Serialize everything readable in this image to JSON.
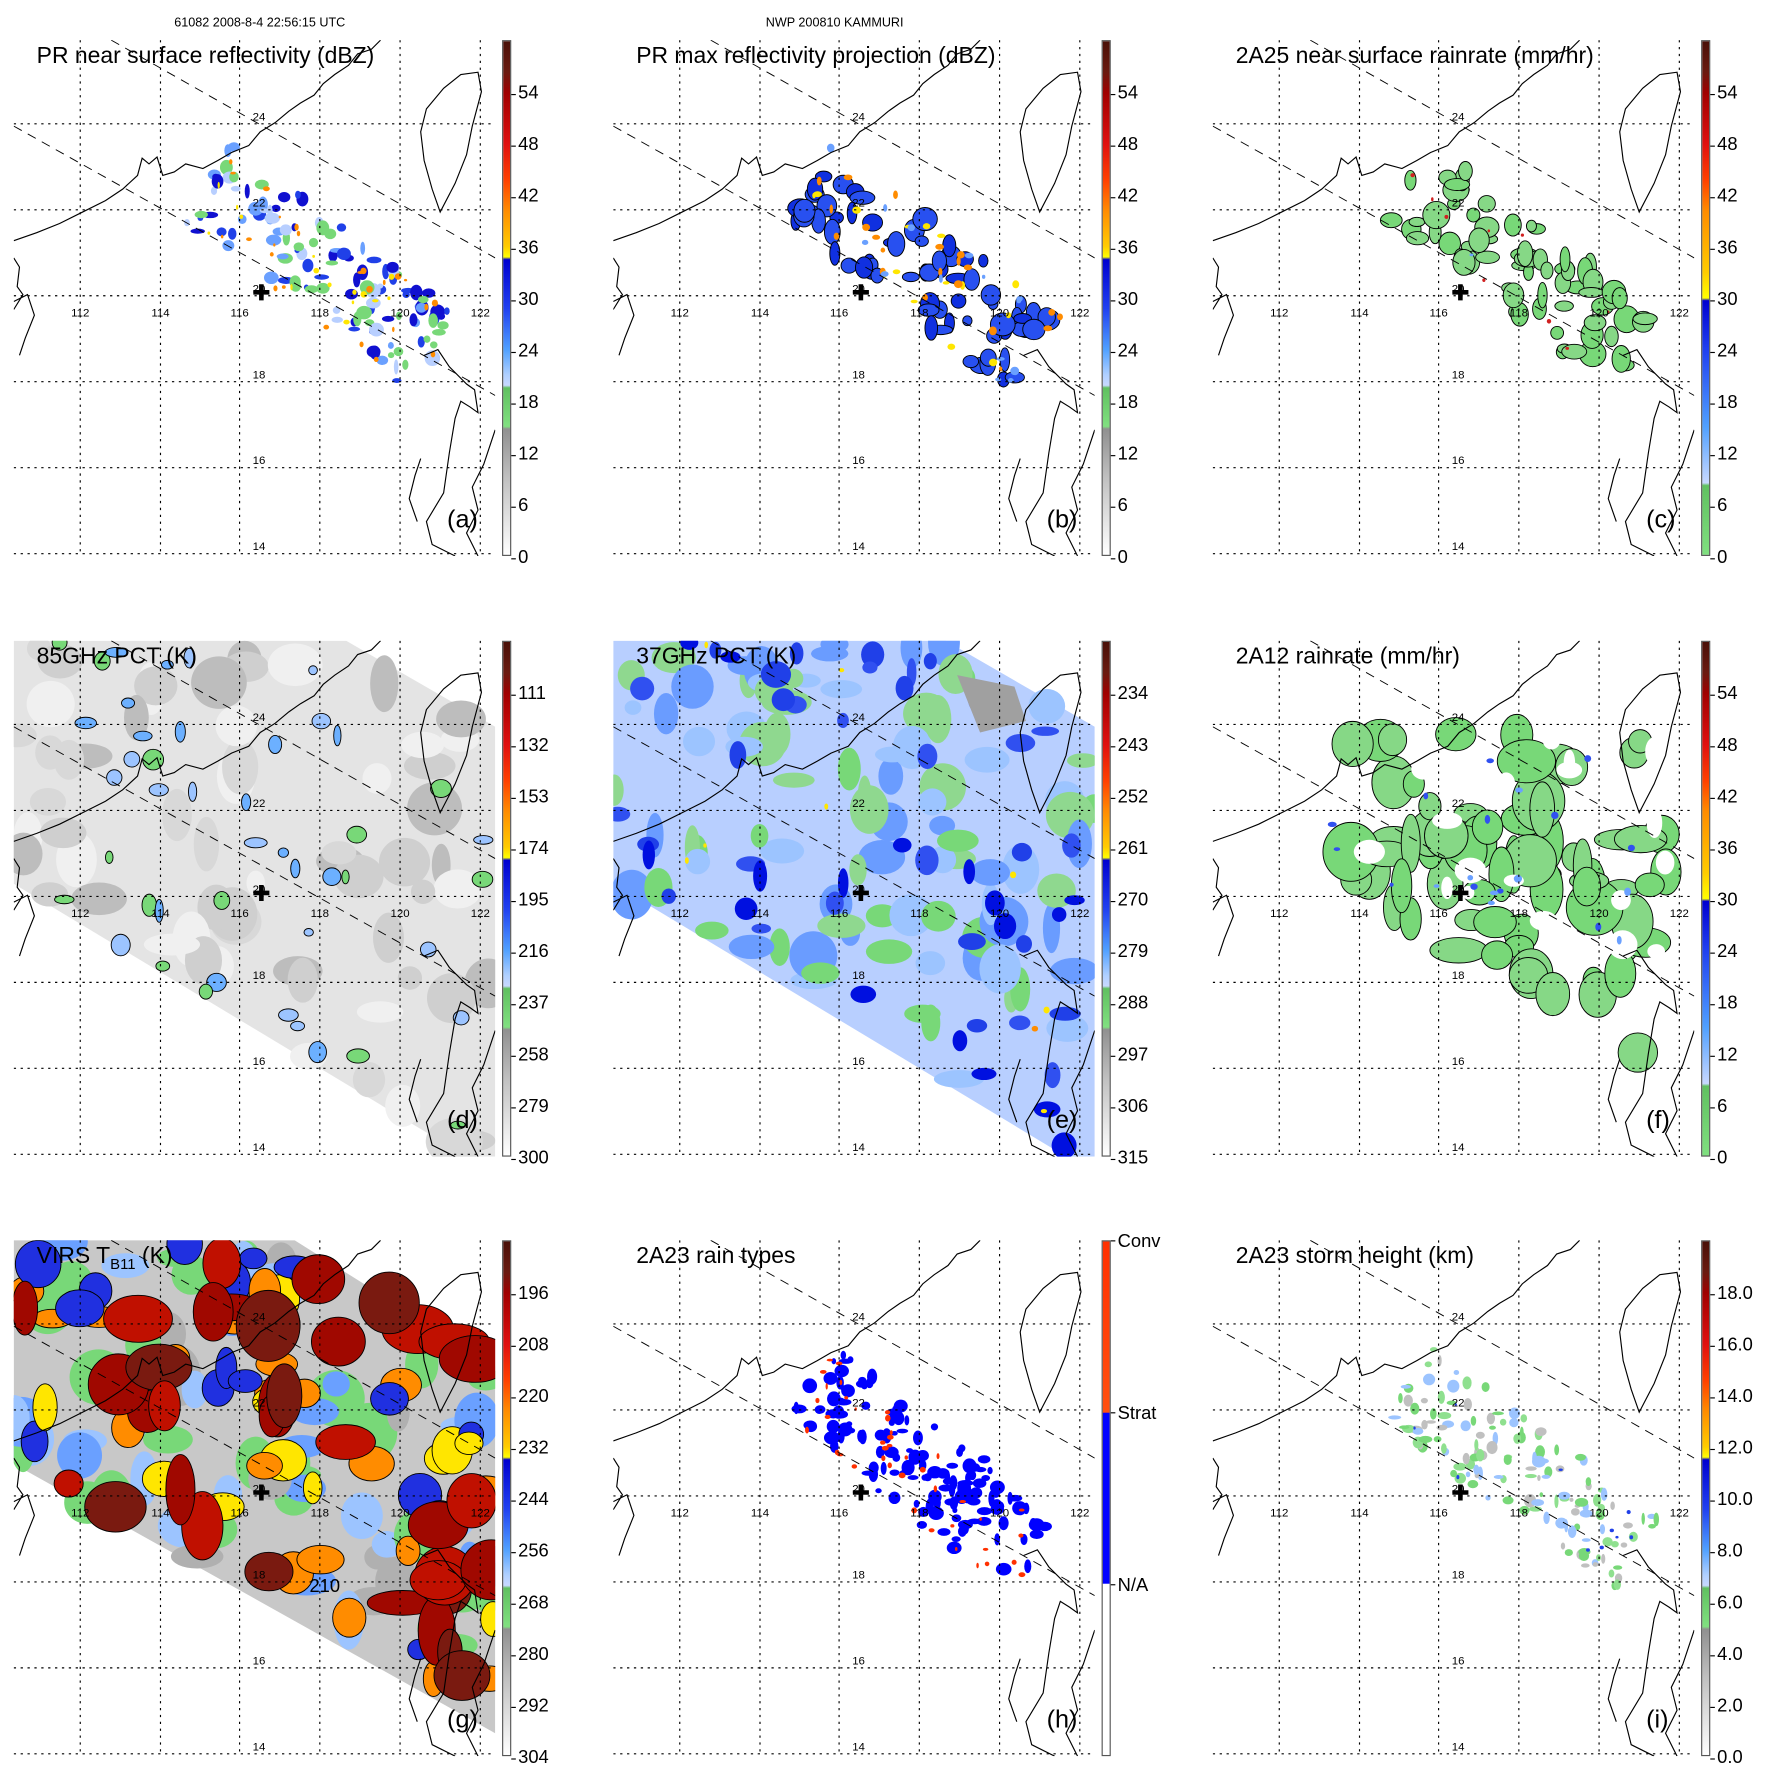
{
  "header": {
    "left": "61082 2008-8-4 22:56:15 UTC",
    "center": "NWP 200810 KAMMURI"
  },
  "axes": {
    "lon_labels": [
      "112",
      "114",
      "116",
      "118",
      "120",
      "122"
    ],
    "lat_labels": [
      "24",
      "22",
      "20",
      "18",
      "16",
      "14"
    ]
  },
  "panels": [
    {
      "id": "a",
      "title": "PR near surface reflectivity (dBZ)",
      "letter": "(a)",
      "style": "pr_refl",
      "cbar": "refl",
      "labels": [
        "54",
        "48",
        "42",
        "36",
        "30",
        "24",
        "18",
        "12",
        "6",
        "0"
      ]
    },
    {
      "id": "b",
      "title": "PR max reflectivity projection (dBZ)",
      "letter": "(b)",
      "style": "pr_max",
      "cbar": "refl",
      "labels": [
        "54",
        "48",
        "42",
        "36",
        "30",
        "24",
        "18",
        "12",
        "6",
        "0"
      ]
    },
    {
      "id": "c",
      "title": "2A25 near surface rainrate (mm/hr)",
      "letter": "(c)",
      "style": "pr_rain",
      "cbar": "rain",
      "labels": [
        "54",
        "48",
        "42",
        "36",
        "30",
        "24",
        "18",
        "12",
        "6",
        "0"
      ]
    },
    {
      "id": "d",
      "title": "85GHz PCT (K)",
      "letter": "(d)",
      "style": "pct85",
      "cbar": "refl",
      "labels": [
        "111",
        "132",
        "153",
        "174",
        "195",
        "216",
        "237",
        "258",
        "279",
        "300"
      ]
    },
    {
      "id": "e",
      "title": "37GHz PCT (K)",
      "letter": "(e)",
      "style": "pct37",
      "cbar": "refl",
      "labels": [
        "234",
        "243",
        "252",
        "261",
        "270",
        "279",
        "288",
        "297",
        "306",
        "315"
      ]
    },
    {
      "id": "f",
      "title": "2A12 rainrate (mm/hr)",
      "letter": "(f)",
      "style": "tmi_rain",
      "cbar": "rain",
      "labels": [
        "54",
        "48",
        "42",
        "36",
        "30",
        "24",
        "18",
        "12",
        "6",
        "0"
      ]
    },
    {
      "id": "g",
      "title": "VIRS T",
      "title_sub": "B11",
      "title_unit": " (K)",
      "letter": "(g)",
      "style": "virs",
      "cbar": "refl",
      "labels": [
        "196",
        "208",
        "220",
        "232",
        "244",
        "256",
        "268",
        "280",
        "292",
        "304"
      ],
      "contour_label": "210"
    },
    {
      "id": "h",
      "title": "2A23 rain types",
      "letter": "(h)",
      "style": "raintype",
      "cbar": "types",
      "labels": [
        "Conv",
        "Strat",
        "N/A"
      ]
    },
    {
      "id": "i",
      "title": "2A23 storm height (km)",
      "letter": "(i)",
      "style": "height",
      "cbar": "refl",
      "labels": [
        "18.0",
        "16.0",
        "14.0",
        "12.0",
        "10.0",
        "8.0",
        "6.0",
        "4.0",
        "2.0",
        "0.0"
      ]
    }
  ],
  "colors": {
    "dark_blue": "#0010e0",
    "light_blue": "#9cc4ff",
    "green": "#78d878",
    "yellow": "#ffe600",
    "orange": "#ff8c00",
    "red": "#d80000",
    "dark_red": "#5a1208",
    "gray": "#a0a0a0"
  }
}
